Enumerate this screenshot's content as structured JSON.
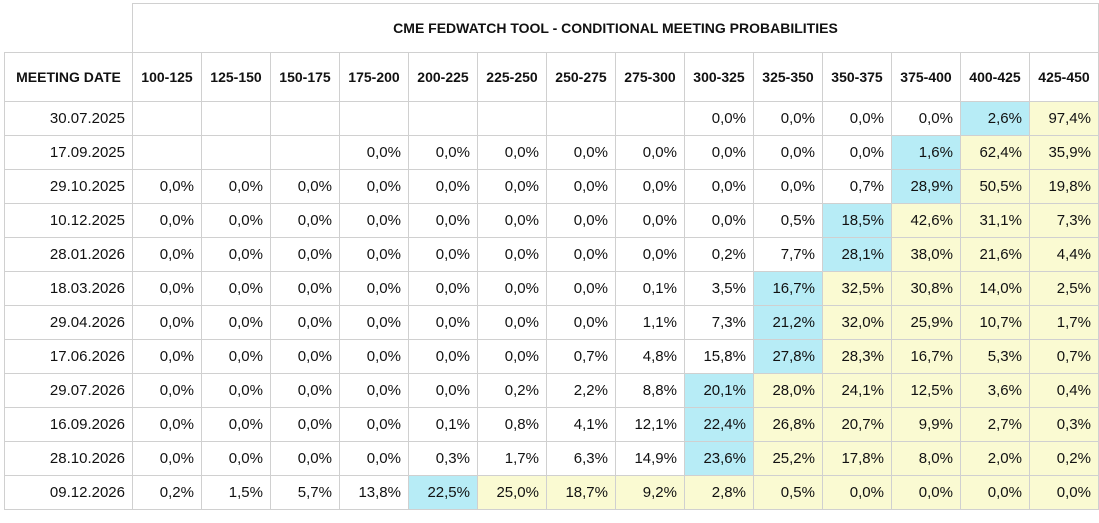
{
  "title": "CME FEDWATCH TOOL - CONDITIONAL MEETING PROBABILITIES",
  "date_header": "MEETING DATE",
  "columns": [
    "100-125",
    "125-150",
    "150-175",
    "175-200",
    "200-225",
    "225-250",
    "250-275",
    "275-300",
    "300-325",
    "325-350",
    "350-375",
    "375-400",
    "400-425",
    "425-450"
  ],
  "colors": {
    "highlight_max": "#b7ecf6",
    "highlight_above": "#fafad2",
    "border": "#d0d0d0"
  },
  "rows": [
    {
      "date": "30.07.2025",
      "values": [
        "",
        "",
        "",
        "",
        "",
        "",
        "",
        "",
        "0,0%",
        "0,0%",
        "0,0%",
        "0,0%",
        "2,6%",
        "97,4%"
      ],
      "max": 13,
      "start": 14
    },
    {
      "date": "17.09.2025",
      "values": [
        "",
        "",
        "",
        "0,0%",
        "0,0%",
        "0,0%",
        "0,0%",
        "0,0%",
        "0,0%",
        "0,0%",
        "0,0%",
        "1,6%",
        "62,4%",
        "35,9%"
      ],
      "max": 12,
      "start": 13
    },
    {
      "date": "29.10.2025",
      "values": [
        "0,0%",
        "0,0%",
        "0,0%",
        "0,0%",
        "0,0%",
        "0,0%",
        "0,0%",
        "0,0%",
        "0,0%",
        "0,0%",
        "0,7%",
        "28,9%",
        "50,5%",
        "19,8%"
      ],
      "max": 12,
      "start": 13
    },
    {
      "date": "10.12.2025",
      "values": [
        "0,0%",
        "0,0%",
        "0,0%",
        "0,0%",
        "0,0%",
        "0,0%",
        "0,0%",
        "0,0%",
        "0,0%",
        "0,5%",
        "18,5%",
        "42,6%",
        "31,1%",
        "7,3%"
      ],
      "max": 11,
      "start": 12
    },
    {
      "date": "28.01.2026",
      "values": [
        "0,0%",
        "0,0%",
        "0,0%",
        "0,0%",
        "0,0%",
        "0,0%",
        "0,0%",
        "0,0%",
        "0,2%",
        "7,7%",
        "28,1%",
        "38,0%",
        "21,6%",
        "4,4%"
      ],
      "max": 11,
      "start": 12
    },
    {
      "date": "18.03.2026",
      "values": [
        "0,0%",
        "0,0%",
        "0,0%",
        "0,0%",
        "0,0%",
        "0,0%",
        "0,0%",
        "0,1%",
        "3,5%",
        "16,7%",
        "32,5%",
        "30,8%",
        "14,0%",
        "2,5%"
      ],
      "max": 10,
      "start": 11
    },
    {
      "date": "29.04.2026",
      "values": [
        "0,0%",
        "0,0%",
        "0,0%",
        "0,0%",
        "0,0%",
        "0,0%",
        "0,0%",
        "1,1%",
        "7,3%",
        "21,2%",
        "32,0%",
        "25,9%",
        "10,7%",
        "1,7%"
      ],
      "max": 10,
      "start": 11
    },
    {
      "date": "17.06.2026",
      "values": [
        "0,0%",
        "0,0%",
        "0,0%",
        "0,0%",
        "0,0%",
        "0,0%",
        "0,7%",
        "4,8%",
        "15,8%",
        "27,8%",
        "28,3%",
        "16,7%",
        "5,3%",
        "0,7%"
      ],
      "max": 10,
      "start": 11
    },
    {
      "date": "29.07.2026",
      "values": [
        "0,0%",
        "0,0%",
        "0,0%",
        "0,0%",
        "0,0%",
        "0,2%",
        "2,2%",
        "8,8%",
        "20,1%",
        "28,0%",
        "24,1%",
        "12,5%",
        "3,6%",
        "0,4%"
      ],
      "max": 9,
      "start": 10
    },
    {
      "date": "16.09.2026",
      "values": [
        "0,0%",
        "0,0%",
        "0,0%",
        "0,0%",
        "0,1%",
        "0,8%",
        "4,1%",
        "12,1%",
        "22,4%",
        "26,8%",
        "20,7%",
        "9,9%",
        "2,7%",
        "0,3%"
      ],
      "max": 9,
      "start": 10
    },
    {
      "date": "28.10.2026",
      "values": [
        "0,0%",
        "0,0%",
        "0,0%",
        "0,0%",
        "0,3%",
        "1,7%",
        "6,3%",
        "14,9%",
        "23,6%",
        "25,2%",
        "17,8%",
        "8,0%",
        "2,0%",
        "0,2%"
      ],
      "max": 9,
      "start": 10
    },
    {
      "date": "09.12.2026",
      "values": [
        "0,2%",
        "1,5%",
        "5,7%",
        "13,8%",
        "22,5%",
        "25,0%",
        "18,7%",
        "9,2%",
        "2,8%",
        "0,5%",
        "0,0%",
        "0,0%",
        "0,0%",
        "0,0%"
      ],
      "max": 5,
      "start": 6
    }
  ]
}
